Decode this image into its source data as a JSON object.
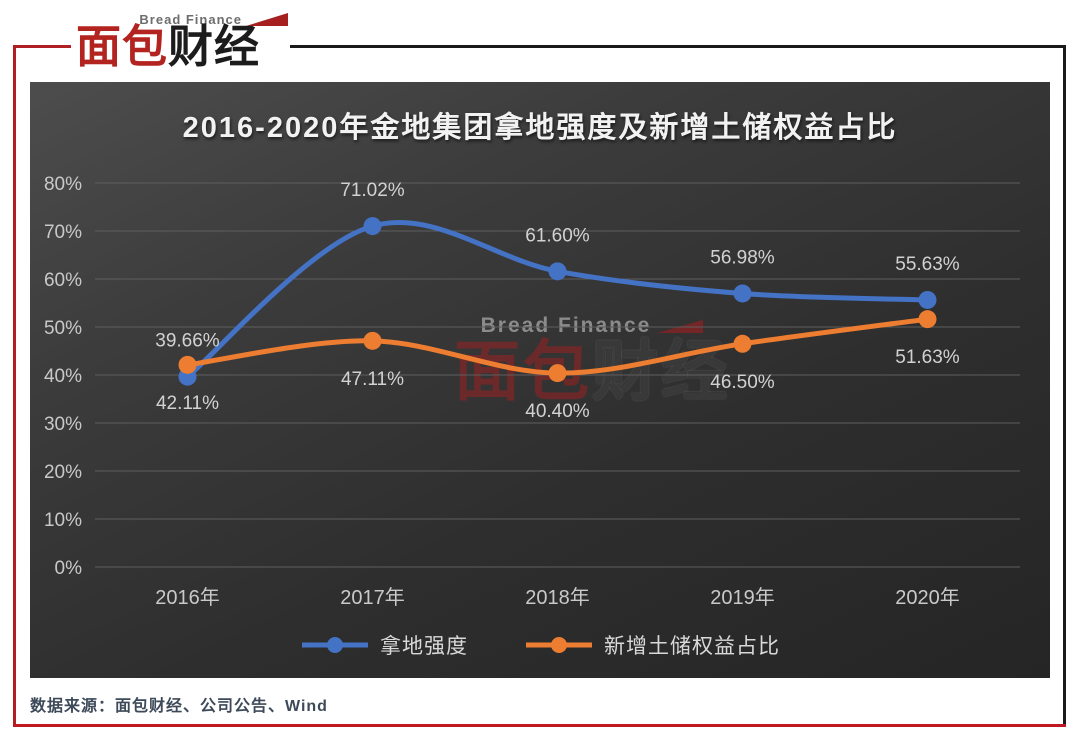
{
  "logo": {
    "brand_en": "Bread Finance",
    "zh_red": "面包",
    "zh_black": "财经"
  },
  "chart_data": {
    "type": "line",
    "smooth": true,
    "title": "2016-2020年金地集团拿地强度及新增土储权益占比",
    "categories": [
      "2016年",
      "2017年",
      "2018年",
      "2019年",
      "2020年"
    ],
    "series": [
      {
        "name": "拿地强度",
        "color": "#4472C4",
        "values": [
          39.66,
          71.02,
          61.6,
          56.98,
          55.63
        ],
        "label_position": "above"
      },
      {
        "name": "新增土储权益占比",
        "color": "#ED7D31",
        "values": [
          42.11,
          47.11,
          40.4,
          46.5,
          51.63
        ],
        "label_position": "below"
      }
    ],
    "ylim": [
      0,
      80
    ],
    "y_tick_step": 10,
    "y_tick_labels": [
      "0%",
      "10%",
      "20%",
      "30%",
      "40%",
      "50%",
      "60%",
      "70%",
      "80%"
    ],
    "grid": true,
    "legend_position": "bottom"
  },
  "watermark": {
    "en": "Bread Finance",
    "zh_red": "面包",
    "zh_black": "财经"
  },
  "footer": {
    "source": "数据来源：面包财经、公司公告、Wind"
  },
  "colors": {
    "grid": "#5E5E5E",
    "tick_text": "#C9C9C9",
    "data_label": "#D2D2D2",
    "frame_red": "#B01F24",
    "frame_black": "#1A1A1A",
    "footer_text": "#3E4A59"
  }
}
